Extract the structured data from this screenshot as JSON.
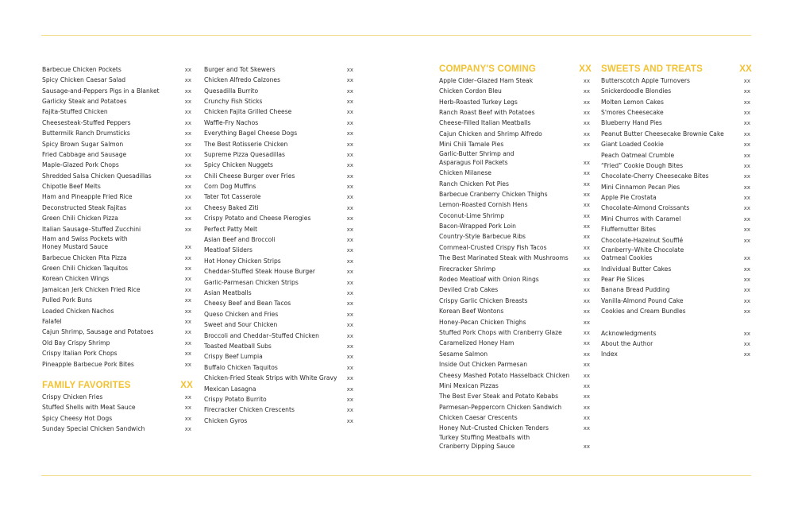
{
  "colors": {
    "accent": "#f2c232",
    "rule": "#f3dc8c",
    "text": "#2a2a2a"
  },
  "columns": [
    {
      "sections": [
        {
          "heading": null,
          "items": [
            {
              "title": "Barbecue Chicken Pockets",
              "page": "xx"
            },
            {
              "title": "Spicy Chicken Caesar Salad",
              "page": "xx"
            },
            {
              "title": "Sausage-and-Peppers Pigs in a Blanket",
              "page": "xx"
            },
            {
              "title": "Garlicky Steak and Potatoes",
              "page": "xx"
            },
            {
              "title": "Fajita-Stuffed Chicken",
              "page": "xx"
            },
            {
              "title": "Cheesesteak-Stuffed Peppers",
              "page": "xx"
            },
            {
              "title": "Buttermilk Ranch Drumsticks",
              "page": "xx"
            },
            {
              "title": "Spicy Brown Sugar Salmon",
              "page": "xx"
            },
            {
              "title": "Fried Cabbage and Sausage",
              "page": "xx"
            },
            {
              "title": "Maple-Glazed Pork Chops",
              "page": "xx"
            },
            {
              "title": "Shredded Salsa Chicken Quesadillas",
              "page": "xx"
            },
            {
              "title": "Chipotle Beef Melts",
              "page": "xx"
            },
            {
              "title": "Ham and Pineapple Fried Rice",
              "page": "xx"
            },
            {
              "title": "Deconstructed Steak Fajitas",
              "page": "xx"
            },
            {
              "title": "Green Chili Chicken Pizza",
              "page": "xx"
            },
            {
              "title": "Italian Sausage–Stuffed Zucchini",
              "page": "xx"
            },
            {
              "title": "Ham and Swiss Pockets with\nHoney Mustard Sauce",
              "page": "xx"
            },
            {
              "title": "Barbecue Chicken Pita Pizza",
              "page": "xx"
            },
            {
              "title": "Green Chili Chicken Taquitos",
              "page": "xx"
            },
            {
              "title": "Korean Chicken Wings",
              "page": "xx"
            },
            {
              "title": "Jamaican Jerk Chicken Fried Rice",
              "page": "xx"
            },
            {
              "title": "Pulled Pork Buns",
              "page": "xx"
            },
            {
              "title": "Loaded Chicken Nachos",
              "page": "xx"
            },
            {
              "title": "Falafel",
              "page": "xx"
            },
            {
              "title": "Cajun Shrimp, Sausage and Potatoes",
              "page": "xx"
            },
            {
              "title": "Old Bay Crispy Shrimp",
              "page": "xx"
            },
            {
              "title": "Crispy Italian Pork Chops",
              "page": "xx"
            },
            {
              "title": "Pineapple Barbecue Pork Bites",
              "page": "xx"
            }
          ]
        },
        {
          "heading": {
            "title": "FAMILY FAVORITES",
            "page": "XX"
          },
          "items": [
            {
              "title": "Crispy Chicken Fries",
              "page": "xx"
            },
            {
              "title": "Stuffed Shells with Meat Sauce",
              "page": "xx"
            },
            {
              "title": "Spicy Cheesy Hot Dogs",
              "page": "xx"
            },
            {
              "title": "Sunday Special Chicken Sandwich",
              "page": "xx"
            }
          ]
        }
      ]
    },
    {
      "sections": [
        {
          "heading": null,
          "items": [
            {
              "title": "Burger and Tot Skewers",
              "page": "xx"
            },
            {
              "title": "Chicken Alfredo Calzones",
              "page": "xx"
            },
            {
              "title": "Quesadilla Burrito",
              "page": "xx"
            },
            {
              "title": "Crunchy Fish Sticks",
              "page": "xx"
            },
            {
              "title": "Chicken Fajita Grilled Cheese",
              "page": "xx"
            },
            {
              "title": "Waffle-Fry Nachos",
              "page": "xx"
            },
            {
              "title": "Everything Bagel Cheese Dogs",
              "page": "xx"
            },
            {
              "title": "The Best Rotisserie Chicken",
              "page": "xx"
            },
            {
              "title": "Supreme Pizza Quesadillas",
              "page": "xx"
            },
            {
              "title": "Spicy Chicken Nuggets",
              "page": "xx"
            },
            {
              "title": "Chili Cheese Burger over Fries",
              "page": "xx"
            },
            {
              "title": "Corn Dog Muffins",
              "page": "xx"
            },
            {
              "title": "Tater Tot Casserole",
              "page": "xx"
            },
            {
              "title": "Cheesy Baked Ziti",
              "page": "xx"
            },
            {
              "title": "Crispy Potato and Cheese Pierogies",
              "page": "xx"
            },
            {
              "title": "Perfect Patty Melt",
              "page": "xx"
            },
            {
              "title": "Asian Beef and Broccoli",
              "page": "xx"
            },
            {
              "title": "Meatloaf Sliders",
              "page": "xx"
            },
            {
              "title": "Hot Honey Chicken Strips",
              "page": "xx"
            },
            {
              "title": "Cheddar-Stuffed Steak House Burger",
              "page": "xx"
            },
            {
              "title": "Garlic-Parmesan Chicken Strips",
              "page": "xx"
            },
            {
              "title": "Asian Meatballs",
              "page": "xx"
            },
            {
              "title": "Cheesy Beef and Bean Tacos",
              "page": "xx"
            },
            {
              "title": "Queso Chicken and Fries",
              "page": "xx"
            },
            {
              "title": "Sweet and Sour Chicken",
              "page": "xx"
            },
            {
              "title": "Broccoli and Cheddar–Stuffed Chicken",
              "page": "xx"
            },
            {
              "title": "Toasted Meatball Subs",
              "page": "xx"
            },
            {
              "title": "Crispy Beef Lumpia",
              "page": "xx"
            },
            {
              "title": "Buffalo Chicken Taquitos",
              "page": "xx"
            },
            {
              "title": "Chicken-Fried Steak Strips with White Gravy",
              "page": "xx"
            },
            {
              "title": "Mexican Lasagna",
              "page": "xx"
            },
            {
              "title": "Crispy Potato Burrito",
              "page": "xx"
            },
            {
              "title": "Firecracker Chicken Crescents",
              "page": "xx"
            },
            {
              "title": "Chicken Gyros",
              "page": "xx"
            }
          ]
        }
      ]
    },
    {
      "sections": [
        {
          "heading": {
            "title": "COMPANY'S COMING",
            "page": "XX"
          },
          "items": [
            {
              "title": "Apple Cider–Glazed Ham Steak",
              "page": "xx"
            },
            {
              "title": "Chicken Cordon Bleu",
              "page": "xx"
            },
            {
              "title": "Herb-Roasted Turkey Legs",
              "page": "xx"
            },
            {
              "title": "Ranch Roast Beef with Potatoes",
              "page": "xx"
            },
            {
              "title": "Cheese-Filled Italian Meatballs",
              "page": "xx"
            },
            {
              "title": "Cajun Chicken and Shrimp Alfredo",
              "page": "xx"
            },
            {
              "title": "Mini Chili Tamale Pies",
              "page": "xx"
            },
            {
              "title": "Garlic-Butter Shrimp and\nAsparagus Foil Packets",
              "page": "xx"
            },
            {
              "title": "Chicken Milanese",
              "page": "xx"
            },
            {
              "title": "Ranch Chicken Pot Pies",
              "page": "xx"
            },
            {
              "title": "Barbecue Cranberry Chicken Thighs",
              "page": "xx"
            },
            {
              "title": "Lemon-Roasted Cornish Hens",
              "page": "xx"
            },
            {
              "title": "Coconut-Lime Shrimp",
              "page": "xx"
            },
            {
              "title": "Bacon-Wrapped Pork Loin",
              "page": "xx"
            },
            {
              "title": "Country-Style Barbecue Ribs",
              "page": "xx"
            },
            {
              "title": "Cornmeal-Crusted Crispy Fish Tacos",
              "page": "xx"
            },
            {
              "title": "The Best Marinated Steak with Mushrooms",
              "page": "xx"
            },
            {
              "title": "Firecracker Shrimp",
              "page": "xx"
            },
            {
              "title": "Rodeo Meatloaf with Onion Rings",
              "page": "xx"
            },
            {
              "title": "Deviled Crab Cakes",
              "page": "xx"
            },
            {
              "title": "Crispy Garlic Chicken Breasts",
              "page": "xx"
            },
            {
              "title": "Korean Beef Wontons",
              "page": "xx"
            },
            {
              "title": "Honey-Pecan Chicken Thighs",
              "page": "xx"
            },
            {
              "title": "Stuffed Pork Chops with Cranberry Glaze",
              "page": "xx"
            },
            {
              "title": "Caramelized Honey Ham",
              "page": "xx"
            },
            {
              "title": "Sesame Salmon",
              "page": "xx"
            },
            {
              "title": "Inside Out Chicken Parmesan",
              "page": "xx"
            },
            {
              "title": "Cheesy Mashed Potato Hasselback Chicken",
              "page": "xx"
            },
            {
              "title": "Mini Mexican Pizzas",
              "page": "xx"
            },
            {
              "title": "The Best Ever Steak and Potato Kebabs",
              "page": "xx"
            },
            {
              "title": "Parmesan-Peppercorn Chicken Sandwich",
              "page": "xx"
            },
            {
              "title": "Chicken Caesar Crescents",
              "page": "xx"
            },
            {
              "title": "Honey Nut–Crusted Chicken Tenders",
              "page": "xx"
            },
            {
              "title": "Turkey Stuffing Meatballs with\nCranberry Dipping Sauce",
              "page": "xx"
            }
          ]
        }
      ]
    },
    {
      "sections": [
        {
          "heading": {
            "title": "SWEETS AND TREATS",
            "page": "XX"
          },
          "items": [
            {
              "title": "Butterscotch Apple Turnovers",
              "page": "xx"
            },
            {
              "title": "Snickerdoodle Blondies",
              "page": "xx"
            },
            {
              "title": "Molten Lemon Cakes",
              "page": "xx"
            },
            {
              "title": "S'mores Cheesecake",
              "page": "xx"
            },
            {
              "title": "Blueberry Hand Pies",
              "page": "xx"
            },
            {
              "title": "Peanut Butter Cheesecake Brownie Cake",
              "page": "xx"
            },
            {
              "title": "Giant Loaded Cookie",
              "page": "xx"
            },
            {
              "title": "Peach Oatmeal Crumble",
              "page": "xx"
            },
            {
              "title": "“Fried” Cookie Dough Bites",
              "page": "xx"
            },
            {
              "title": "Chocolate-Cherry Cheesecake Bites",
              "page": "xx"
            },
            {
              "title": "Mini Cinnamon Pecan Pies",
              "page": "xx"
            },
            {
              "title": "Apple Pie Crostata",
              "page": "xx"
            },
            {
              "title": "Chocolate-Almond Croissants",
              "page": "xx"
            },
            {
              "title": "Mini Churros with Caramel",
              "page": "xx"
            },
            {
              "title": "Fluffernutter Bites",
              "page": "xx"
            },
            {
              "title": "Chocolate-Hazelnut Soufflé",
              "page": "xx"
            },
            {
              "title": "Cranberry–White Chocolate\nOatmeal Cookies",
              "page": "xx"
            },
            {
              "title": "Individual Butter Cakes",
              "page": "xx"
            },
            {
              "title": "Pear Pie Slices",
              "page": "xx"
            },
            {
              "title": "Banana Bread Pudding",
              "page": "xx"
            },
            {
              "title": "Vanilla-Almond Pound Cake",
              "page": "xx"
            },
            {
              "title": "Cookies and Cream Bundles",
              "page": "xx"
            }
          ]
        },
        {
          "heading": null,
          "items": [
            {
              "title": "Acknowledgments",
              "page": "xx"
            },
            {
              "title": "About the Author",
              "page": "xx"
            },
            {
              "title": "Index",
              "page": "xx"
            }
          ]
        }
      ]
    }
  ]
}
